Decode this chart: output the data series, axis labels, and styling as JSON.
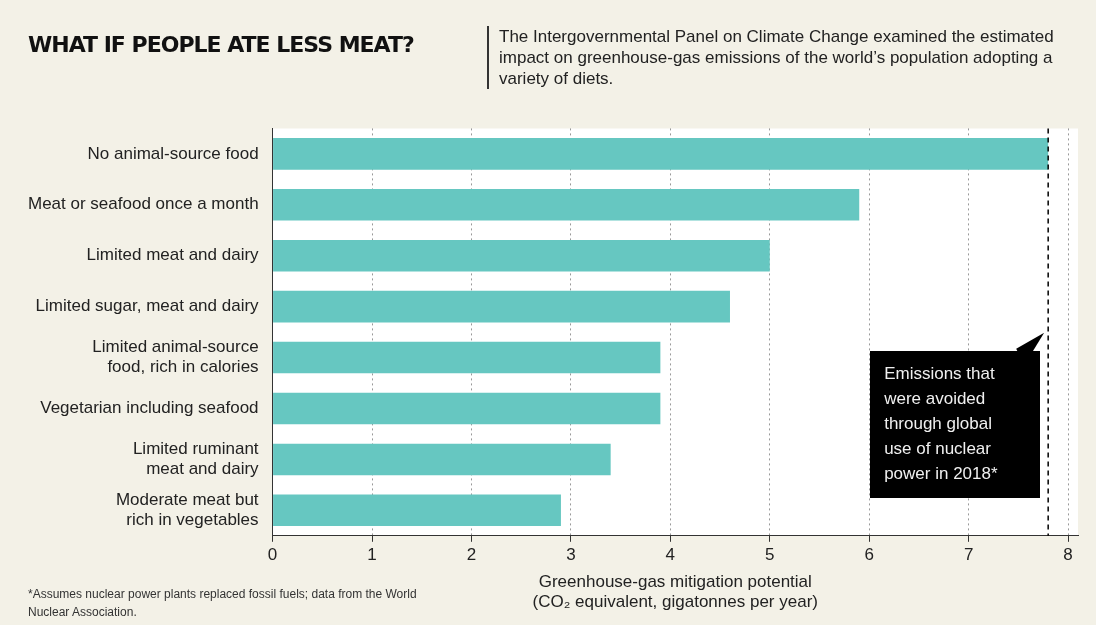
{
  "chart_data": {
    "type": "bar",
    "orientation": "horizontal",
    "title": "WHAT IF PEOPLE ATE LESS MEAT?",
    "subtitle": "The Intergovernmental Panel on Climate Change examined the estimated impact on greenhouse-gas emissions of the world’s population adopting a variety of diets.",
    "categories": [
      "No animal-source food",
      "Meat or seafood once a month",
      "Limited meat and dairy",
      "Limited sugar, meat and dairy",
      "Limited animal-source food, rich in calories",
      "Vegetarian including seafood",
      "Limited ruminant meat and dairy",
      "Moderate meat but rich in vegetables"
    ],
    "values": [
      7.8,
      5.9,
      5.0,
      4.6,
      3.9,
      3.9,
      3.4,
      2.9
    ],
    "color": "#66c7c1",
    "xlabel": "Greenhouse-gas mitigation potential (CO₂ equivalent, gigatonnes per year)",
    "xlim": [
      0,
      8.1
    ],
    "xticks": [
      0,
      1,
      2,
      3,
      4,
      5,
      6,
      7,
      8
    ],
    "grid": "x",
    "legend": false,
    "ref_lines": [
      {
        "axis": "x",
        "value": 7.8,
        "label": "Emissions that were avoided through global use of nuclear power in 2018*",
        "color": "#000000",
        "line_style": "dashed"
      }
    ],
    "annotations": [
      "*Assumes nuclear power plants replaced fossil fuels; data from the World Nuclear Association."
    ]
  }
}
